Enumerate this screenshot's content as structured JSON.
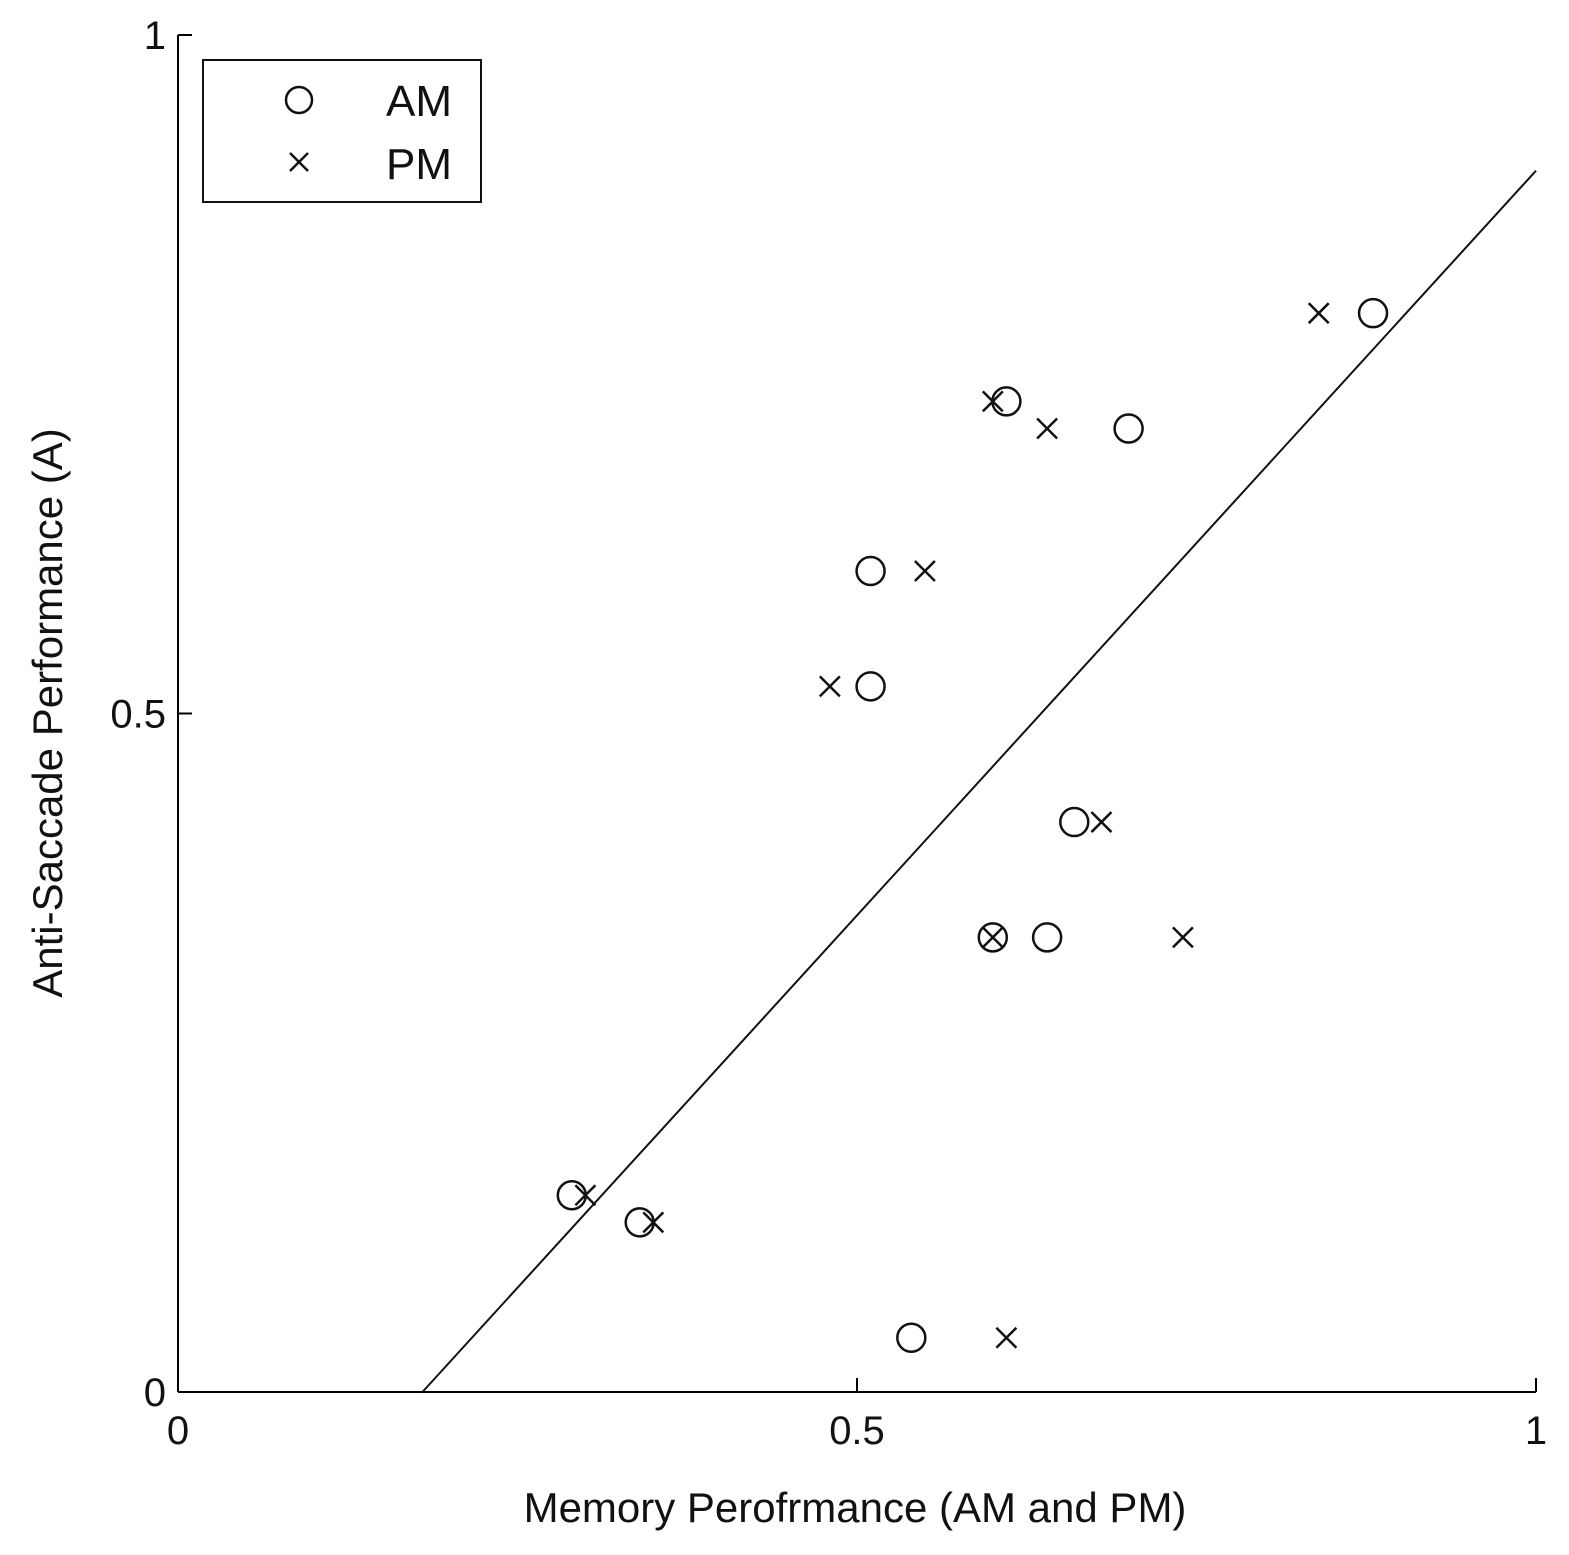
{
  "chart_data": {
    "type": "scatter",
    "xlabel": "Memory Perofrmance (AM and PM)",
    "ylabel": "Anti-Saccade Performance (A)",
    "xlim": [
      0,
      1
    ],
    "ylim": [
      0,
      1
    ],
    "x_ticks": [
      "0",
      "0.5",
      "1"
    ],
    "y_ticks": [
      "0",
      "0.5",
      "1"
    ],
    "legend": {
      "placement": "top-left"
    },
    "series": [
      {
        "name": "AM",
        "marker": "circle",
        "points": [
          {
            "x": 0.29,
            "y": 0.145
          },
          {
            "x": 0.34,
            "y": 0.125
          },
          {
            "x": 0.54,
            "y": 0.04
          },
          {
            "x": 0.51,
            "y": 0.52
          },
          {
            "x": 0.51,
            "y": 0.605
          },
          {
            "x": 0.61,
            "y": 0.73
          },
          {
            "x": 0.7,
            "y": 0.71
          },
          {
            "x": 0.88,
            "y": 0.795
          },
          {
            "x": 0.66,
            "y": 0.42
          },
          {
            "x": 0.6,
            "y": 0.335
          },
          {
            "x": 0.64,
            "y": 0.335
          }
        ]
      },
      {
        "name": "PM",
        "marker": "x",
        "points": [
          {
            "x": 0.3,
            "y": 0.145
          },
          {
            "x": 0.35,
            "y": 0.125
          },
          {
            "x": 0.61,
            "y": 0.04
          },
          {
            "x": 0.48,
            "y": 0.52
          },
          {
            "x": 0.55,
            "y": 0.605
          },
          {
            "x": 0.6,
            "y": 0.73
          },
          {
            "x": 0.64,
            "y": 0.71
          },
          {
            "x": 0.84,
            "y": 0.795
          },
          {
            "x": 0.68,
            "y": 0.42
          },
          {
            "x": 0.6,
            "y": 0.335
          },
          {
            "x": 0.74,
            "y": 0.335
          }
        ]
      }
    ],
    "fit_line": {
      "x": [
        0.18,
        1.0
      ],
      "y": [
        0.0,
        0.9
      ]
    }
  }
}
